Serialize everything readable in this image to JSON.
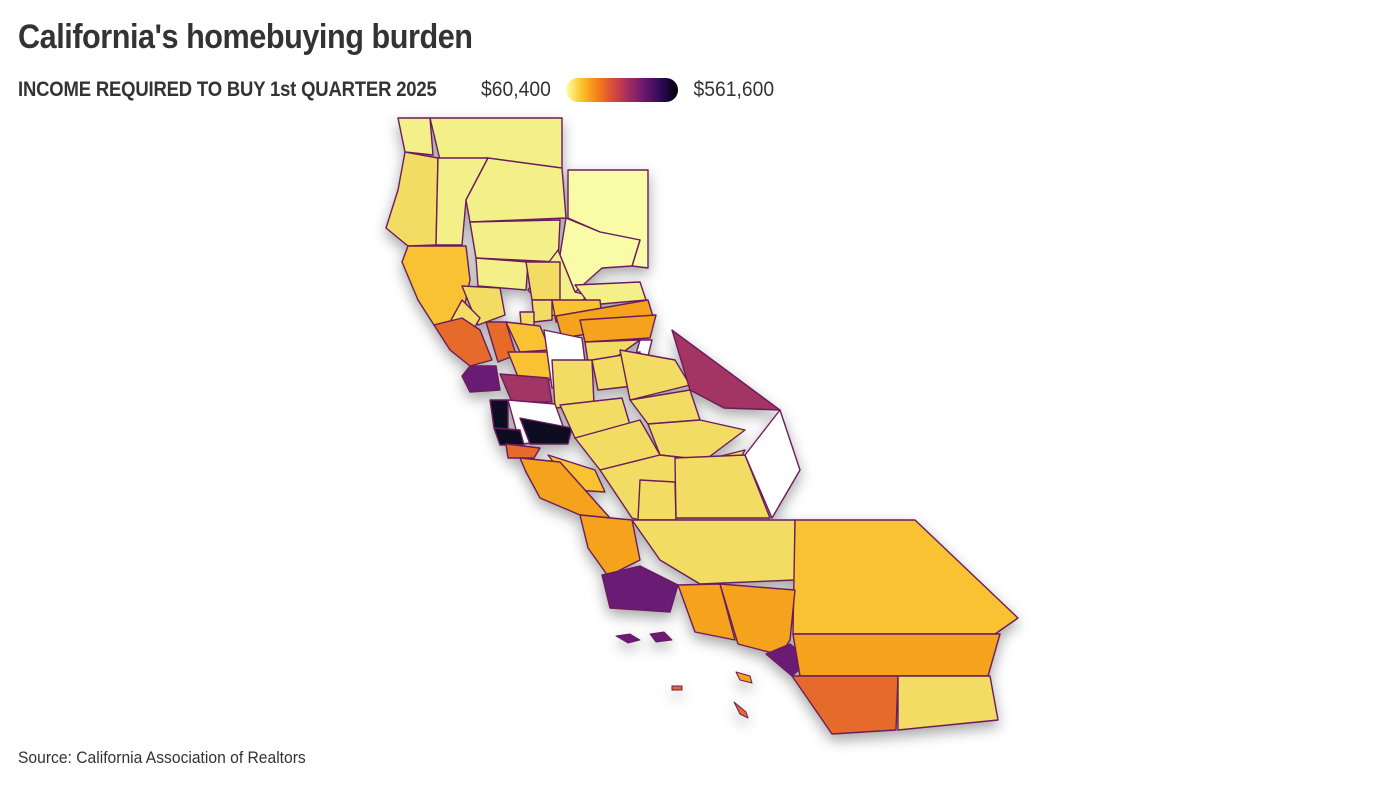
{
  "header": {
    "title": "California's homebuying burden",
    "legend_title": "INCOME REQUIRED TO BUY 1st QUARTER 2025",
    "legend_min": "$60,400",
    "legend_max": "$561,600"
  },
  "colors": {
    "scale": [
      "#fcffa4",
      "#fac228",
      "#f57d15",
      "#d44842",
      "#9f2a63",
      "#65156e",
      "#280b53",
      "#000004"
    ],
    "border": "#6b1b5e",
    "no_data": "#ffffff"
  },
  "map_data": {
    "type": "choropleth",
    "region": "California counties",
    "value_scale": {
      "min": 60400,
      "max": 561600
    },
    "counties_by_shade_level": {
      "lightest_yellow": [
        "Modoc",
        "Lassen"
      ],
      "pale_yellow": [
        "Del Norte",
        "Siskiyou",
        "Trinity",
        "Shasta",
        "Tehama",
        "Glenn",
        "Plumas",
        "Sierra"
      ],
      "yellow": [
        "Humboldt",
        "Butte",
        "Yuba",
        "Sutter",
        "Colusa",
        "Lake",
        "Merced",
        "Madera",
        "Fresno",
        "Tulare",
        "Kings",
        "Kern",
        "Imperial",
        "Mariposa",
        "Tuolumne",
        "Calaveras",
        "Amador",
        "San Joaquin",
        "Stanislaus"
      ],
      "amber": [
        "Mendocino",
        "San Bernardino",
        "Nevada",
        "Yolo",
        "Solano",
        "San Benito"
      ],
      "orange": [
        "Placer",
        "El Dorado",
        "Riverside",
        "Ventura",
        "Los Angeles",
        "San Luis Obispo",
        "Monterey"
      ],
      "red_orange": [
        "Sonoma",
        "Napa",
        "San Diego",
        "Santa Cruz"
      ],
      "magenta": [
        "Mono",
        "Contra Costa"
      ],
      "purple": [
        "Marin",
        "Santa Barbara",
        "Orange"
      ],
      "near_black": [
        "San Francisco",
        "San Mateo",
        "Santa Clara"
      ]
    }
  },
  "footer": {
    "source": "Source: California Association of Realtors"
  }
}
